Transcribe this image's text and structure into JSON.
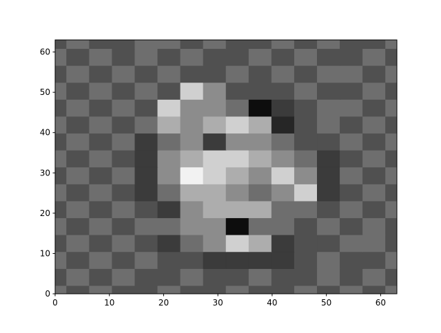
{
  "chart_data": {
    "type": "contourf",
    "x": [
      0,
      4.2,
      8.4,
      12.6,
      16.8,
      21,
      25.2,
      29.4,
      33.6,
      37.8,
      42,
      46.2,
      50.4,
      54.6,
      58.8,
      63
    ],
    "y": [
      0,
      4.2,
      8.4,
      12.6,
      16.8,
      21,
      25.2,
      29.4,
      33.6,
      37.8,
      42,
      46.2,
      50.4,
      54.6,
      58.8,
      63
    ],
    "z": [
      [
        0.5,
        -0.5,
        0.5,
        -0.5,
        -0.5,
        0.5,
        -0.5,
        -0.5,
        0.5,
        -0.5,
        -0.5,
        0.5,
        -0.5,
        0.5,
        -0.5,
        0.5
      ],
      [
        -0.5,
        0.5,
        -0.5,
        0.5,
        -0.5,
        -0.5,
        0.5,
        -0.5,
        -0.5,
        0.5,
        -0.5,
        -0.5,
        0.5,
        -0.5,
        0.5,
        -0.5
      ],
      [
        0.5,
        -0.5,
        0.5,
        -0.5,
        0.5,
        -0.5,
        -0.5,
        -1.5,
        -1.5,
        -1.5,
        -1.5,
        -0.5,
        0.5,
        -0.5,
        -0.5,
        0.5
      ],
      [
        -0.5,
        0.5,
        -0.5,
        0.5,
        -0.5,
        -1.5,
        0.5,
        1.5,
        3.5,
        2,
        -1.5,
        -0.5,
        -0.5,
        0.5,
        0.5,
        -0.5
      ],
      [
        0.5,
        -0.5,
        0.5,
        -0.5,
        0.5,
        0.5,
        1.5,
        1.5,
        -3.5,
        0.5,
        0.5,
        -0.5,
        0.5,
        -0.5,
        0.5,
        -0.5
      ],
      [
        -0.5,
        0.5,
        -0.5,
        0.5,
        -0.5,
        -1.5,
        1.5,
        2.5,
        2.5,
        2,
        0.5,
        0.5,
        -0.5,
        0.5,
        -0.5,
        0.5
      ],
      [
        0.5,
        -0.5,
        0.5,
        -0.5,
        -1.5,
        0.5,
        2.5,
        2,
        1.5,
        0.5,
        1.5,
        3.5,
        -1.5,
        -0.5,
        0.5,
        -0.5
      ],
      [
        -0.5,
        0.5,
        -0.5,
        0.5,
        -1.5,
        1.5,
        4,
        3,
        2.5,
        1.5,
        3,
        1.5,
        -1.5,
        0.5,
        -0.5,
        0.5
      ],
      [
        0.5,
        -0.5,
        0.5,
        -0.5,
        -1.5,
        1.5,
        2,
        3,
        3.5,
        2,
        1.5,
        0.5,
        -1.5,
        -0.5,
        0.5,
        -0.5
      ],
      [
        -0.5,
        0.5,
        -0.5,
        0.5,
        -1.5,
        0.5,
        1.5,
        -1.5,
        1.5,
        1.5,
        0.5,
        -0.5,
        -0.5,
        0.5,
        -0.5,
        0.5
      ],
      [
        0.5,
        -0.5,
        0.5,
        -0.5,
        0.5,
        2,
        1.5,
        2,
        3.5,
        2.5,
        -2.5,
        -0.5,
        0.5,
        -0.5,
        0.5,
        -0.5
      ],
      [
        -0.5,
        0.5,
        -0.5,
        0.5,
        -0.5,
        3.5,
        1.5,
        1.5,
        0.5,
        -3.5,
        -1.5,
        -0.5,
        0.5,
        0.5,
        -0.5,
        0.5
      ],
      [
        0.5,
        -0.5,
        0.5,
        -0.5,
        0.5,
        -0.5,
        3,
        1.5,
        -0.5,
        -0.5,
        -0.5,
        0.5,
        -0.5,
        -0.5,
        0.5,
        -0.5
      ],
      [
        -0.5,
        0.5,
        -0.5,
        0.5,
        -0.5,
        0.5,
        -0.5,
        -0.5,
        0.5,
        -0.5,
        0.5,
        -0.5,
        0.5,
        0.5,
        -0.5,
        0.5
      ],
      [
        0.5,
        -0.5,
        0.5,
        -0.5,
        0.5,
        -0.5,
        0.5,
        -0.5,
        -0.5,
        0.5,
        -0.5,
        0.5,
        -0.5,
        -0.5,
        0.5,
        -0.5
      ],
      [
        -0.5,
        0.5,
        -0.5,
        -0.5,
        0.5,
        0.5,
        -0.5,
        0.5,
        -0.5,
        -0.5,
        0.5,
        -0.5,
        0.5,
        -0.5,
        -0.5,
        0.5
      ]
    ],
    "levels": [
      -4,
      -3,
      -2,
      -1,
      0,
      1,
      2,
      3,
      4,
      5
    ],
    "colors": [
      "#0d0d0d",
      "#262626",
      "#3b3b3b",
      "#505050",
      "#6e6e6e",
      "#8c8c8c",
      "#adadad",
      "#d0d0d0",
      "#f2f2f2"
    ],
    "xlim": [
      0,
      63
    ],
    "ylim": [
      0,
      63
    ],
    "xticks": [
      0,
      10,
      20,
      30,
      40,
      50,
      60
    ],
    "yticks": [
      0,
      10,
      20,
      30,
      40,
      50,
      60
    ]
  }
}
